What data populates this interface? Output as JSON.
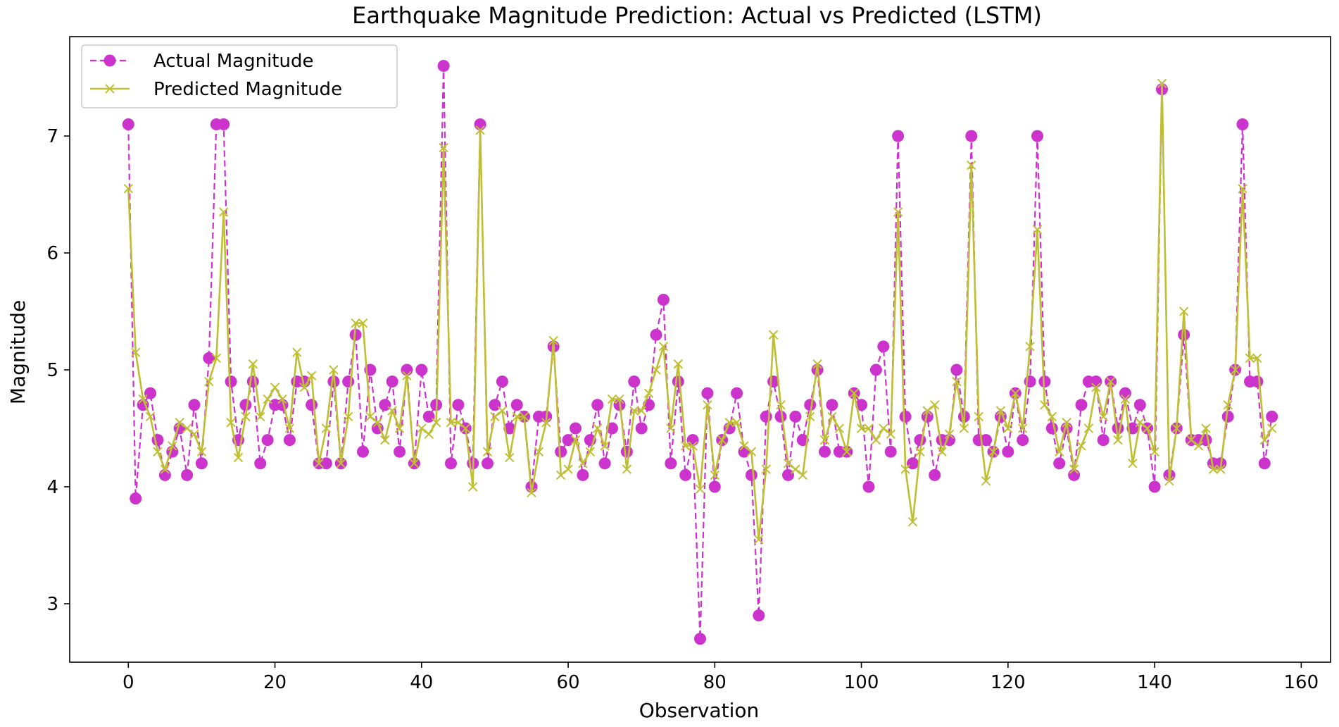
{
  "chart_data": {
    "type": "line",
    "title": "Earthquake Magnitude Prediction: Actual vs Predicted (LSTM)",
    "xlabel": "Observation",
    "ylabel": "Magnitude",
    "xlim": [
      -8,
      164
    ],
    "ylim": [
      2.5,
      7.85
    ],
    "x_ticks": [
      0,
      20,
      40,
      60,
      80,
      100,
      120,
      140,
      160
    ],
    "y_ticks": [
      3,
      4,
      5,
      6,
      7
    ],
    "grid": false,
    "legend_position": "top-left",
    "colors": {
      "actual": "#cc33cc",
      "predicted": "#bfbf33"
    },
    "series": [
      {
        "name": "Actual Magnitude",
        "style": "dashed line with circle markers",
        "values": [
          7.1,
          3.9,
          4.7,
          4.8,
          4.4,
          4.1,
          4.3,
          4.5,
          4.1,
          4.7,
          4.2,
          5.1,
          7.1,
          7.1,
          4.9,
          4.4,
          4.7,
          4.9,
          4.2,
          4.4,
          4.7,
          4.7,
          4.4,
          4.9,
          4.9,
          4.7,
          4.2,
          4.2,
          4.9,
          4.2,
          4.9,
          5.3,
          4.3,
          5.0,
          4.5,
          4.7,
          4.9,
          4.3,
          5.0,
          4.2,
          5.0,
          4.6,
          4.7,
          7.6,
          4.2,
          4.7,
          4.5,
          4.2,
          7.1,
          4.2,
          4.7,
          4.9,
          4.5,
          4.7,
          4.6,
          4.0,
          4.6,
          4.6,
          5.2,
          4.3,
          4.4,
          4.5,
          4.1,
          4.4,
          4.7,
          4.2,
          4.5,
          4.7,
          4.3,
          4.9,
          4.5,
          4.7,
          5.3,
          5.6,
          4.2,
          4.9,
          4.1,
          4.4,
          2.7,
          4.8,
          4.0,
          4.4,
          4.5,
          4.8,
          4.3,
          4.1,
          2.9,
          4.6,
          4.9,
          4.6,
          4.1,
          4.6,
          4.4,
          4.7,
          5.0,
          4.3,
          4.7,
          4.3,
          4.3,
          4.8,
          4.7,
          4.0,
          5.0,
          5.2,
          4.3,
          7.0,
          4.6,
          4.2,
          4.4,
          4.6,
          4.1,
          4.4,
          4.4,
          5.0,
          4.6,
          7.0,
          4.4,
          4.4,
          4.3,
          4.6,
          4.3,
          4.8,
          4.4,
          4.9,
          7.0,
          4.9,
          4.5,
          4.2,
          4.5,
          4.1,
          4.7,
          4.9,
          4.9,
          4.4,
          4.9,
          4.5,
          4.8,
          4.5,
          4.7,
          4.5,
          4.0,
          7.4,
          4.1,
          4.5,
          5.3,
          4.4,
          4.4,
          4.4,
          4.2,
          4.2,
          4.6,
          5.0,
          7.1,
          4.9,
          4.9,
          4.2,
          4.6
        ]
      },
      {
        "name": "Predicted Magnitude",
        "style": "solid line with x markers",
        "values": [
          6.55,
          5.15,
          4.75,
          4.6,
          4.3,
          4.15,
          4.35,
          4.55,
          4.5,
          4.45,
          4.3,
          4.9,
          5.1,
          6.35,
          4.55,
          4.25,
          4.6,
          5.05,
          4.6,
          4.75,
          4.85,
          4.75,
          4.5,
          5.15,
          4.85,
          4.95,
          4.2,
          4.5,
          5.0,
          4.2,
          4.6,
          5.4,
          5.4,
          4.6,
          4.55,
          4.4,
          4.65,
          4.5,
          4.95,
          4.2,
          4.5,
          4.45,
          4.55,
          6.9,
          4.55,
          4.55,
          4.5,
          4.0,
          7.05,
          4.3,
          4.6,
          4.65,
          4.25,
          4.6,
          4.6,
          3.95,
          4.3,
          4.55,
          5.25,
          4.1,
          4.15,
          4.4,
          4.2,
          4.3,
          4.5,
          4.35,
          4.75,
          4.75,
          4.15,
          4.65,
          4.65,
          4.8,
          5.0,
          5.2,
          4.5,
          5.05,
          4.35,
          4.35,
          3.98,
          4.7,
          4.1,
          4.4,
          4.55,
          4.55,
          4.35,
          4.3,
          3.55,
          4.15,
          5.3,
          4.7,
          4.2,
          4.15,
          4.1,
          4.6,
          5.05,
          4.4,
          4.6,
          4.5,
          4.3,
          4.8,
          4.5,
          4.5,
          4.4,
          4.5,
          4.45,
          6.35,
          4.15,
          3.7,
          4.3,
          4.65,
          4.7,
          4.3,
          4.45,
          4.9,
          4.5,
          6.75,
          4.6,
          4.05,
          4.3,
          4.65,
          4.5,
          4.8,
          4.5,
          5.2,
          6.2,
          4.7,
          4.6,
          4.3,
          4.55,
          4.15,
          4.35,
          4.5,
          4.85,
          4.6,
          4.9,
          4.4,
          4.75,
          4.2,
          4.55,
          4.5,
          4.3,
          7.45,
          4.05,
          4.5,
          5.5,
          4.4,
          4.35,
          4.5,
          4.15,
          4.15,
          4.7,
          5.0,
          6.55,
          5.1,
          5.1,
          4.4,
          4.5
        ]
      }
    ]
  }
}
